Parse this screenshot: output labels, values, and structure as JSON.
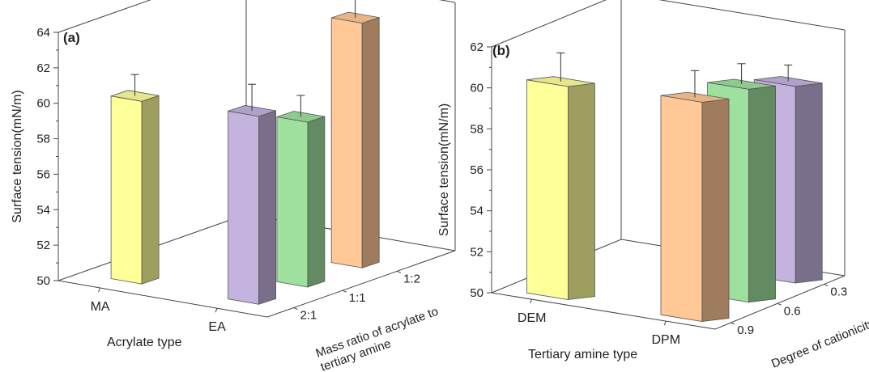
{
  "chart_data": [
    {
      "type": "bar",
      "panel_label": "(a)",
      "ylabel": "Surface tension(mN/m)",
      "xlabel": "Acrylate type",
      "zlabel_lines": [
        "Mass ratio of  acrylate to",
        "tertiary amine"
      ],
      "ylim": [
        50,
        64
      ],
      "yticks": [
        "50",
        "52",
        "54",
        "56",
        "58",
        "60",
        "62",
        "64"
      ],
      "x_categories": [
        "MA",
        "EA"
      ],
      "z_categories": [
        "2:1",
        "1:1",
        "1:2"
      ],
      "bars": [
        {
          "x": "MA",
          "z": "2:1",
          "value": 60.3,
          "error": 1.2,
          "color": "#ffff99"
        },
        {
          "x": "EA",
          "z": "2:1",
          "value": 60.6,
          "error": 1.5,
          "color": "#c4b3df"
        },
        {
          "x": "EA",
          "z": "1:1",
          "value": 59.3,
          "error": 1.2,
          "color": "#9ee09e"
        },
        {
          "x": "EA",
          "z": "1:2",
          "value": 63.8,
          "error": 1.4,
          "color": "#ffc896"
        }
      ]
    },
    {
      "type": "bar",
      "panel_label": "(b)",
      "ylabel": "Surface tension(mN/m)",
      "xlabel": "Tertiary amine type",
      "zlabel_lines": [
        "Degree of cationicity"
      ],
      "ylim": [
        50,
        62
      ],
      "yticks": [
        "50",
        "52",
        "54",
        "56",
        "58",
        "60",
        "62"
      ],
      "x_categories": [
        "DEM",
        "DPM"
      ],
      "z_categories": [
        "0.9",
        "0.6",
        "0.3"
      ],
      "bars": [
        {
          "x": "DEM",
          "z": "0.9",
          "value": 60.4,
          "error": 1.4,
          "color": "#ffff99"
        },
        {
          "x": "DPM",
          "z": "0.9",
          "value": 60.7,
          "error": 1.3,
          "color": "#ffc896"
        },
        {
          "x": "DPM",
          "z": "0.6",
          "value": 60.4,
          "error": 1.0,
          "color": "#9ee09e"
        },
        {
          "x": "DPM",
          "z": "0.3",
          "value": 59.6,
          "error": 0.8,
          "color": "#c4b3df"
        }
      ]
    }
  ]
}
